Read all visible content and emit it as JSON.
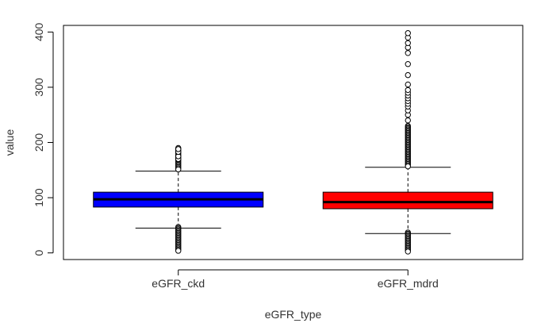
{
  "chart_data": {
    "type": "boxplot",
    "title": "",
    "xlabel": "eGFR_type",
    "ylabel": "value",
    "ylim": [
      -12,
      412
    ],
    "yticks": [
      0,
      100,
      200,
      300,
      400
    ],
    "grid": false,
    "categories": [
      "eGFR_ckd",
      "eGFR_mdrd"
    ],
    "boxes": [
      {
        "name": "eGFR_ckd",
        "color": "#0000ff",
        "whisker_low": 45,
        "q1": 83,
        "median": 97,
        "q3": 110,
        "whisker_high": 148,
        "outliers_low_range": [
          2,
          47
        ],
        "outliers_high_range": [
          150,
          190
        ],
        "outliers_high_sparse": [
          170,
          175,
          183,
          188
        ]
      },
      {
        "name": "eGFR_mdrd",
        "color": "#ff0000",
        "whisker_low": 35,
        "q1": 80,
        "median": 92,
        "q3": 110,
        "whisker_high": 155,
        "outliers_low_range": [
          2,
          37
        ],
        "outliers_high_range": [
          155,
          230
        ],
        "outliers_high_sparse": [
          240,
          250,
          258,
          265,
          270,
          275,
          280,
          285,
          290,
          295,
          305,
          322,
          342,
          362,
          372,
          380,
          390,
          398
        ]
      }
    ]
  }
}
